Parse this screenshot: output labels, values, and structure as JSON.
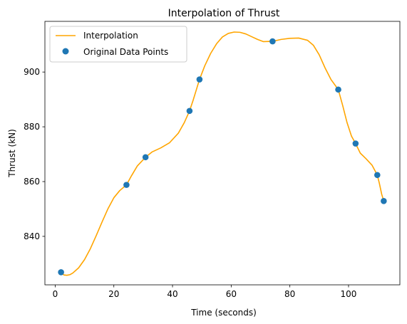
{
  "chart_data": {
    "type": "line",
    "title": "Interpolation of Thrust",
    "xlabel": "Time (seconds)",
    "ylabel": "Thrust (kN)",
    "xlim": [
      -3.5,
      117.5
    ],
    "ylim": [
      822.3,
      918.5
    ],
    "xticks": [
      0,
      20,
      40,
      60,
      80,
      100
    ],
    "yticks": [
      840,
      860,
      880,
      900
    ],
    "grid": false,
    "legend_position": "top-left",
    "series": [
      {
        "name": "Interpolation",
        "kind": "line",
        "color": "#ffa500",
        "x": [
          2.0,
          3,
          4,
          5,
          6,
          8,
          10,
          12,
          14,
          16,
          18,
          20,
          22,
          24.3,
          26,
          28,
          30.8,
          33,
          36,
          39,
          42,
          44,
          45.8,
          47,
          48,
          49.2,
          51,
          53,
          55,
          57,
          59,
          61,
          63,
          65,
          67,
          69,
          71,
          74.1,
          77,
          80,
          83,
          86,
          88,
          90,
          92,
          94,
          96.5,
          98,
          99.5,
          101,
          102.4,
          104,
          106,
          108,
          109.8,
          110.5,
          111.3,
          112.0
        ],
        "y": [
          826.9,
          825.9,
          825.8,
          826.0,
          826.6,
          828.5,
          831.5,
          835.5,
          840.3,
          845.3,
          850.1,
          854.1,
          856.7,
          858.8,
          862.1,
          865.7,
          868.9,
          870.8,
          872.3,
          874.2,
          877.7,
          881.5,
          885.8,
          889.6,
          893.1,
          897.3,
          902.3,
          906.8,
          910.3,
          912.8,
          914.1,
          914.6,
          914.5,
          913.9,
          912.9,
          911.9,
          911.1,
          911.2,
          911.9,
          912.3,
          912.4,
          911.6,
          909.8,
          906.3,
          901.5,
          897.3,
          893.6,
          887.8,
          881.5,
          876.6,
          873.9,
          870.4,
          868.3,
          866.0,
          862.4,
          859.4,
          855.4,
          852.9
        ]
      },
      {
        "name": "Original Data Points",
        "kind": "scatter",
        "color": "#1f77b4",
        "x": [
          2.0,
          24.3,
          30.8,
          45.8,
          49.2,
          74.1,
          96.5,
          102.4,
          109.8,
          112.0
        ],
        "y": [
          826.9,
          858.8,
          868.9,
          885.8,
          897.3,
          911.2,
          893.6,
          873.9,
          862.4,
          852.9
        ]
      }
    ]
  }
}
